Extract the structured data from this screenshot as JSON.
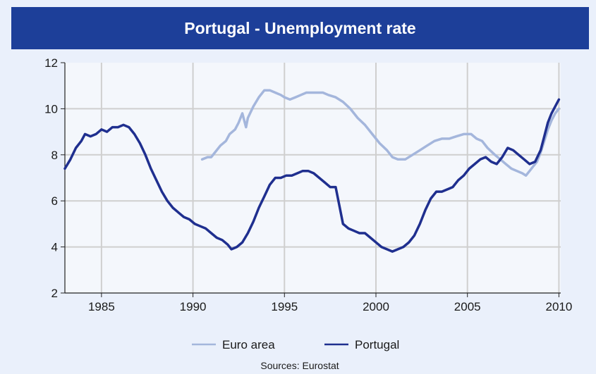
{
  "chart_data": {
    "type": "line",
    "title": "Portugal - Unemployment rate",
    "xlim": [
      1983.0,
      2010.1
    ],
    "ylim": [
      2,
      12
    ],
    "x_ticks": [
      1985,
      1990,
      1995,
      2000,
      2005,
      2010
    ],
    "y_ticks": [
      2,
      4,
      6,
      8,
      10,
      12
    ],
    "grid": true,
    "legend_position": "bottom-center",
    "source": "Sources: Eurostat",
    "series": [
      {
        "name": "Euro area",
        "color": "#a4b6dc",
        "points": [
          [
            1990.5,
            7.8
          ],
          [
            1990.8,
            7.9
          ],
          [
            1991.0,
            7.9
          ],
          [
            1991.2,
            8.1
          ],
          [
            1991.5,
            8.4
          ],
          [
            1991.8,
            8.6
          ],
          [
            1992.0,
            8.9
          ],
          [
            1992.3,
            9.1
          ],
          [
            1992.5,
            9.4
          ],
          [
            1992.7,
            9.8
          ],
          [
            1992.9,
            9.2
          ],
          [
            1993.0,
            9.6
          ],
          [
            1993.3,
            10.1
          ],
          [
            1993.6,
            10.5
          ],
          [
            1993.9,
            10.8
          ],
          [
            1994.2,
            10.8
          ],
          [
            1994.5,
            10.7
          ],
          [
            1994.8,
            10.6
          ],
          [
            1995.0,
            10.5
          ],
          [
            1995.3,
            10.4
          ],
          [
            1995.6,
            10.5
          ],
          [
            1995.9,
            10.6
          ],
          [
            1996.2,
            10.7
          ],
          [
            1996.5,
            10.7
          ],
          [
            1996.8,
            10.7
          ],
          [
            1997.1,
            10.7
          ],
          [
            1997.4,
            10.6
          ],
          [
            1997.8,
            10.5
          ],
          [
            1998.2,
            10.3
          ],
          [
            1998.6,
            10.0
          ],
          [
            1999.0,
            9.6
          ],
          [
            1999.4,
            9.3
          ],
          [
            1999.8,
            8.9
          ],
          [
            2000.2,
            8.5
          ],
          [
            2000.6,
            8.2
          ],
          [
            2000.9,
            7.9
          ],
          [
            2001.2,
            7.8
          ],
          [
            2001.6,
            7.8
          ],
          [
            2002.0,
            8.0
          ],
          [
            2002.4,
            8.2
          ],
          [
            2002.8,
            8.4
          ],
          [
            2003.2,
            8.6
          ],
          [
            2003.6,
            8.7
          ],
          [
            2004.0,
            8.7
          ],
          [
            2004.4,
            8.8
          ],
          [
            2004.8,
            8.9
          ],
          [
            2005.2,
            8.9
          ],
          [
            2005.5,
            8.7
          ],
          [
            2005.8,
            8.6
          ],
          [
            2006.1,
            8.3
          ],
          [
            2006.5,
            8.0
          ],
          [
            2006.8,
            7.8
          ],
          [
            2007.1,
            7.6
          ],
          [
            2007.4,
            7.4
          ],
          [
            2007.7,
            7.3
          ],
          [
            2008.0,
            7.2
          ],
          [
            2008.2,
            7.1
          ],
          [
            2008.4,
            7.3
          ],
          [
            2008.6,
            7.5
          ],
          [
            2008.8,
            7.7
          ],
          [
            2009.0,
            8.1
          ],
          [
            2009.2,
            8.6
          ],
          [
            2009.4,
            9.1
          ],
          [
            2009.6,
            9.5
          ],
          [
            2009.8,
            9.8
          ],
          [
            2010.0,
            10.0
          ]
        ]
      },
      {
        "name": "Portugal",
        "color": "#1f2f8f",
        "points": [
          [
            1983.0,
            7.4
          ],
          [
            1983.3,
            7.8
          ],
          [
            1983.6,
            8.3
          ],
          [
            1983.9,
            8.6
          ],
          [
            1984.1,
            8.9
          ],
          [
            1984.4,
            8.8
          ],
          [
            1984.7,
            8.9
          ],
          [
            1985.0,
            9.1
          ],
          [
            1985.3,
            9.0
          ],
          [
            1985.6,
            9.2
          ],
          [
            1985.9,
            9.2
          ],
          [
            1986.2,
            9.3
          ],
          [
            1986.5,
            9.2
          ],
          [
            1986.8,
            8.9
          ],
          [
            1987.1,
            8.5
          ],
          [
            1987.4,
            8.0
          ],
          [
            1987.7,
            7.4
          ],
          [
            1988.0,
            6.9
          ],
          [
            1988.3,
            6.4
          ],
          [
            1988.6,
            6.0
          ],
          [
            1988.9,
            5.7
          ],
          [
            1989.2,
            5.5
          ],
          [
            1989.5,
            5.3
          ],
          [
            1989.8,
            5.2
          ],
          [
            1990.1,
            5.0
          ],
          [
            1990.4,
            4.9
          ],
          [
            1990.7,
            4.8
          ],
          [
            1991.0,
            4.6
          ],
          [
            1991.3,
            4.4
          ],
          [
            1991.6,
            4.3
          ],
          [
            1991.9,
            4.1
          ],
          [
            1992.1,
            3.9
          ],
          [
            1992.4,
            4.0
          ],
          [
            1992.7,
            4.2
          ],
          [
            1993.0,
            4.6
          ],
          [
            1993.3,
            5.1
          ],
          [
            1993.6,
            5.7
          ],
          [
            1993.9,
            6.2
          ],
          [
            1994.2,
            6.7
          ],
          [
            1994.5,
            7.0
          ],
          [
            1994.8,
            7.0
          ],
          [
            1995.1,
            7.1
          ],
          [
            1995.4,
            7.1
          ],
          [
            1995.7,
            7.2
          ],
          [
            1996.0,
            7.3
          ],
          [
            1996.3,
            7.3
          ],
          [
            1996.6,
            7.2
          ],
          [
            1996.9,
            7.0
          ],
          [
            1997.2,
            6.8
          ],
          [
            1997.5,
            6.6
          ],
          [
            1997.8,
            6.6
          ],
          [
            1998.0,
            5.8
          ],
          [
            1998.2,
            5.0
          ],
          [
            1998.5,
            4.8
          ],
          [
            1998.8,
            4.7
          ],
          [
            1999.1,
            4.6
          ],
          [
            1999.4,
            4.6
          ],
          [
            1999.7,
            4.4
          ],
          [
            2000.0,
            4.2
          ],
          [
            2000.3,
            4.0
          ],
          [
            2000.6,
            3.9
          ],
          [
            2000.9,
            3.8
          ],
          [
            2001.2,
            3.9
          ],
          [
            2001.5,
            4.0
          ],
          [
            2001.8,
            4.2
          ],
          [
            2002.1,
            4.5
          ],
          [
            2002.4,
            5.0
          ],
          [
            2002.7,
            5.6
          ],
          [
            2003.0,
            6.1
          ],
          [
            2003.3,
            6.4
          ],
          [
            2003.6,
            6.4
          ],
          [
            2003.9,
            6.5
          ],
          [
            2004.2,
            6.6
          ],
          [
            2004.5,
            6.9
          ],
          [
            2004.8,
            7.1
          ],
          [
            2005.1,
            7.4
          ],
          [
            2005.4,
            7.6
          ],
          [
            2005.7,
            7.8
          ],
          [
            2006.0,
            7.9
          ],
          [
            2006.3,
            7.7
          ],
          [
            2006.6,
            7.6
          ],
          [
            2006.9,
            7.9
          ],
          [
            2007.2,
            8.3
          ],
          [
            2007.5,
            8.2
          ],
          [
            2007.8,
            8.0
          ],
          [
            2008.1,
            7.8
          ],
          [
            2008.4,
            7.6
          ],
          [
            2008.7,
            7.7
          ],
          [
            2009.0,
            8.2
          ],
          [
            2009.2,
            8.8
          ],
          [
            2009.4,
            9.4
          ],
          [
            2009.6,
            9.8
          ],
          [
            2009.8,
            10.1
          ],
          [
            2010.0,
            10.4
          ]
        ]
      }
    ]
  }
}
